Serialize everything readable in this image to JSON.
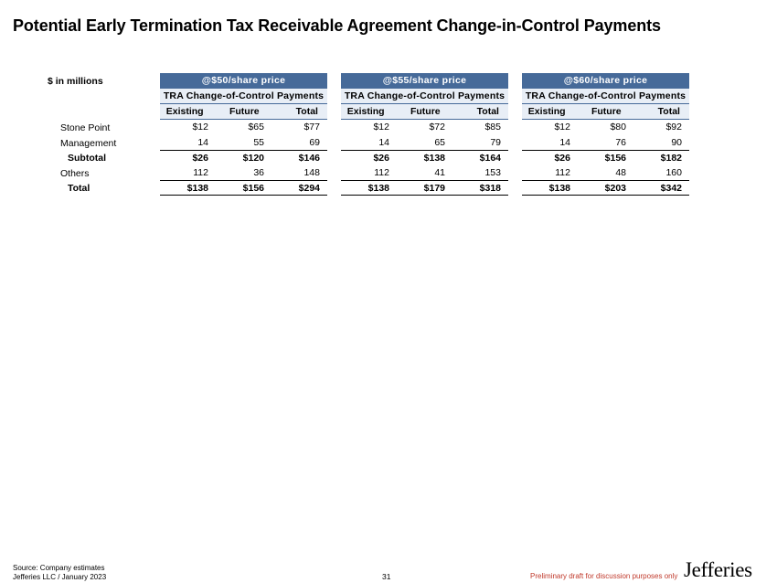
{
  "title": "Potential Early Termination Tax Receivable Agreement Change-in-Control Payments",
  "units_label": "$ in millions",
  "row_labels": [
    "Stone Point",
    "Management",
    "Subtotal",
    "Others",
    "Total"
  ],
  "panels": [
    {
      "header": "@$50/share price",
      "subheader": "TRA Change-of-Control Payments",
      "columns": [
        "Existing",
        "Future",
        "Total"
      ],
      "rows": [
        [
          "$12",
          "$65",
          "$77"
        ],
        [
          "14",
          "55",
          "69"
        ],
        [
          "$26",
          "$120",
          "$146"
        ],
        [
          "112",
          "36",
          "148"
        ],
        [
          "$138",
          "$156",
          "$294"
        ]
      ]
    },
    {
      "header": "@$55/share price",
      "subheader": "TRA Change-of-Control Payments",
      "columns": [
        "Existing",
        "Future",
        "Total"
      ],
      "rows": [
        [
          "$12",
          "$72",
          "$85"
        ],
        [
          "14",
          "65",
          "79"
        ],
        [
          "$26",
          "$138",
          "$164"
        ],
        [
          "112",
          "41",
          "153"
        ],
        [
          "$138",
          "$179",
          "$318"
        ]
      ]
    },
    {
      "header": "@$60/share price",
      "subheader": "TRA Change-of-Control Payments",
      "columns": [
        "Existing",
        "Future",
        "Total"
      ],
      "rows": [
        [
          "$12",
          "$80",
          "$92"
        ],
        [
          "14",
          "76",
          "90"
        ],
        [
          "$26",
          "$156",
          "$182"
        ],
        [
          "112",
          "48",
          "160"
        ],
        [
          "$138",
          "$203",
          "$342"
        ]
      ]
    }
  ],
  "footer": {
    "source": "Source: Company estimates",
    "firm_date": "Jefferies LLC / January 2023",
    "page_number": "31",
    "draft_note": "Preliminary draft for discussion purposes only",
    "logo": "Jefferies"
  },
  "colors": {
    "header_bg": "#466a99",
    "subheader_bg": "#e8eef6",
    "draft_text": "#c0392b"
  }
}
